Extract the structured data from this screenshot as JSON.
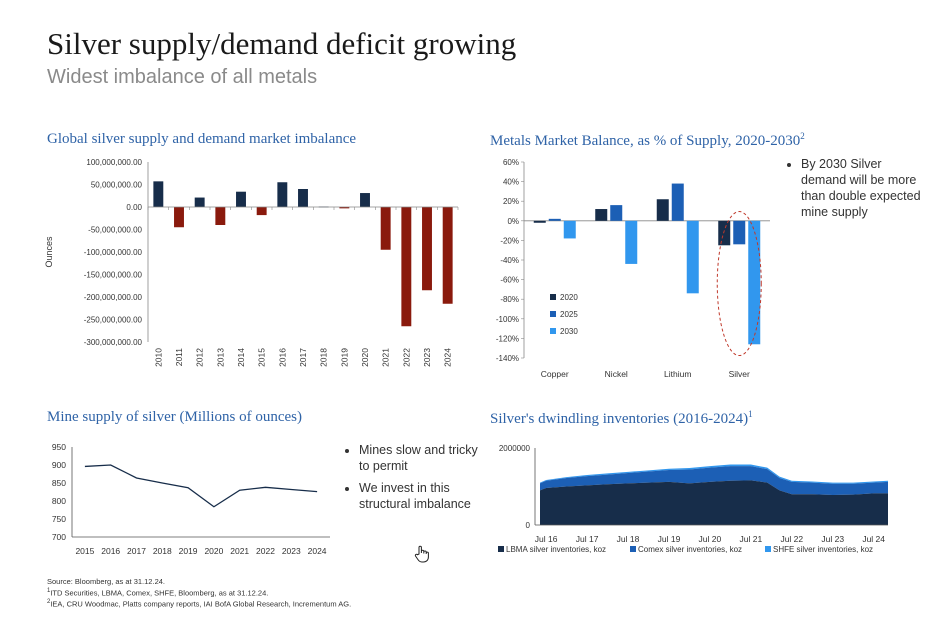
{
  "page": {
    "title": "Silver supply/demand deficit growing",
    "subtitle": "Widest imbalance of all metals"
  },
  "colors": {
    "navy": "#172d4a",
    "darkred": "#8a1a0d",
    "blue": "#1c5fb5",
    "lightblue": "#3197ee",
    "title_blue": "#2f63a7"
  },
  "chart_data": [
    {
      "id": "imbalance",
      "type": "bar",
      "title": "Global silver supply and demand market imbalance",
      "ylabel": "Ounces",
      "ylim": [
        -300000000,
        100000000
      ],
      "yticks": [
        100000000,
        50000000,
        0,
        -50000000,
        -100000000,
        -150000000,
        -200000000,
        -250000000,
        -300000000
      ],
      "ytick_labels": [
        "100,000,000.00",
        "50,000,000.00",
        "0.00",
        "-50,000,000.00",
        "-100,000,000.00",
        "-150,000,000.00",
        "-200,000,000.00",
        "-250,000,000.00",
        "-300,000,000.00"
      ],
      "categories": [
        "2010",
        "2011",
        "2012",
        "2013",
        "2014",
        "2015",
        "2016",
        "2017",
        "2018",
        "2019",
        "2020",
        "2021",
        "2022",
        "2023",
        "2024"
      ],
      "values": [
        57000000,
        -45000000,
        21000000,
        -40000000,
        34000000,
        -18000000,
        55000000,
        40000000,
        1000000,
        -3000000,
        31000000,
        -95000000,
        -265000000,
        -185000000,
        -215000000
      ]
    },
    {
      "id": "balance",
      "type": "bar",
      "title": "Metals Market Balance, as % of Supply, 2020-2030",
      "title_sup": "2",
      "ylim": [
        -140,
        60
      ],
      "ytick_labels": [
        "60%",
        "40%",
        "20%",
        "0%",
        "-20%",
        "-40%",
        "-60%",
        "-80%",
        "-100%",
        "-120%",
        "-140%"
      ],
      "categories": [
        "Copper",
        "Nickel",
        "Lithium",
        "Silver"
      ],
      "series": [
        {
          "name": "2020",
          "values": [
            -2,
            12,
            22,
            -25
          ]
        },
        {
          "name": "2025",
          "values": [
            2,
            16,
            38,
            -24
          ]
        },
        {
          "name": "2030",
          "values": [
            -18,
            -44,
            -74,
            -126
          ]
        }
      ]
    },
    {
      "id": "mine_supply",
      "type": "line",
      "title": "Mine supply of silver (Millions of ounces)",
      "ylim": [
        700,
        950
      ],
      "ytick_labels": [
        "950",
        "900",
        "850",
        "800",
        "750",
        "700"
      ],
      "x": [
        "2015",
        "2016",
        "2017",
        "2018",
        "2019",
        "2020",
        "2021",
        "2022",
        "2023",
        "2024"
      ],
      "values": [
        896,
        900,
        864,
        850,
        837,
        784,
        830,
        838,
        832,
        826
      ]
    },
    {
      "id": "inventories",
      "type": "area",
      "title": "Silver's dwindling inventories (2016-2024)",
      "title_sup": "1",
      "ylim": [
        0,
        2000000
      ],
      "ytick_labels": [
        "2000000",
        "0"
      ],
      "x_labels": [
        "Jul 16",
        "Jul 17",
        "Jul 18",
        "Jul 19",
        "Jul 20",
        "Jul 21",
        "Jul 22",
        "Jul 23",
        "Jul 24"
      ],
      "x": [
        2016.35,
        2016.5,
        2017.0,
        2017.5,
        2018.0,
        2018.5,
        2019.0,
        2019.5,
        2020.0,
        2020.5,
        2021.0,
        2021.5,
        2021.9,
        2022.2,
        2022.5,
        2023.0,
        2023.5,
        2024.0,
        2024.5,
        2024.85
      ],
      "series": [
        {
          "name": "LBMA silver inventories, koz",
          "values": [
            900000,
            960000,
            1000000,
            1030000,
            1060000,
            1080000,
            1100000,
            1120000,
            1080000,
            1120000,
            1150000,
            1160000,
            1100000,
            900000,
            800000,
            800000,
            780000,
            790000,
            820000,
            820000
          ]
        },
        {
          "name": "Comex silver inventories, koz",
          "values": [
            180000,
            190000,
            220000,
            240000,
            250000,
            270000,
            290000,
            310000,
            360000,
            370000,
            380000,
            370000,
            350000,
            320000,
            320000,
            300000,
            290000,
            280000,
            280000,
            300000
          ]
        },
        {
          "name": "SHFE silver inventories, koz",
          "values": [
            20000,
            20000,
            25000,
            30000,
            30000,
            30000,
            30000,
            30000,
            40000,
            40000,
            40000,
            40000,
            40000,
            35000,
            30000,
            30000,
            30000,
            30000,
            30000,
            30000
          ]
        }
      ]
    }
  ],
  "bullets": {
    "balance": [
      "By 2030 Silver demand will be more than double expected mine supply"
    ],
    "mine": [
      "Mines slow and tricky to permit",
      "We invest in this structural imbalance"
    ]
  },
  "sources": [
    "Source: Bloomberg, as at 31.12.24.",
    "ITD Securities, LBMA, Comex, SHFE, Bloomberg, as at 31.12.24.",
    "IEA, CRU Woodmac, Platts company reports, IAI BofA Global Research, Incrementum AG."
  ],
  "source_sups": [
    "1",
    "2"
  ]
}
